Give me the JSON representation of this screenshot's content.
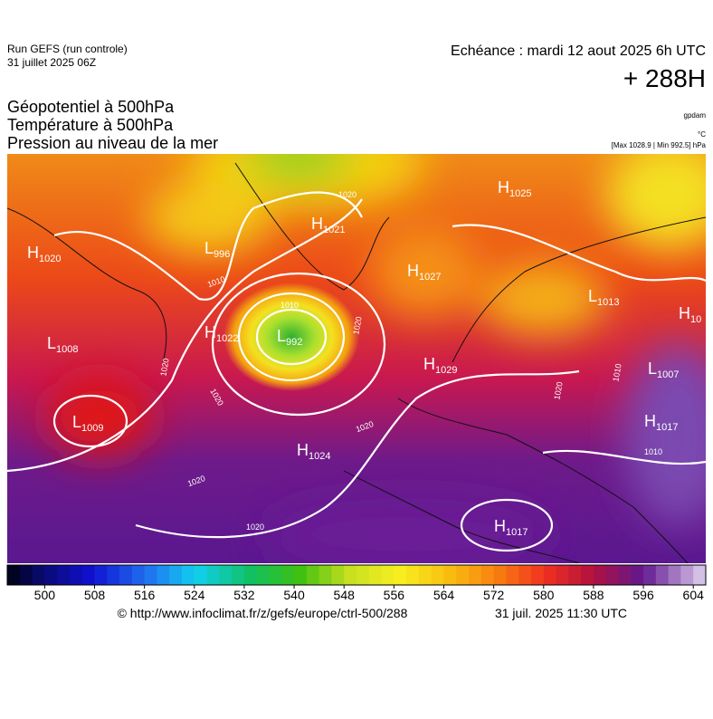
{
  "header": {
    "run": "Run GEFS (run controle)",
    "run_date": "31 juillet 2025 06Z",
    "valid": "Echéance : mardi 12 aout 2025 6h UTC",
    "lead": "+ 288H",
    "titles": [
      "Géopotentiel à 500hPa",
      "Température à 500hPa",
      "Pression au niveau de la mer"
    ],
    "units": [
      "gpdam",
      "°C",
      "[Max 1028.9 | Min 992.5] hPa"
    ]
  },
  "map": {
    "centers": [
      {
        "kind": "H",
        "value": "1020"
      },
      {
        "kind": "L",
        "value": "996"
      },
      {
        "kind": "H",
        "value": "1021"
      },
      {
        "kind": "H",
        "value": "1025"
      },
      {
        "kind": "H",
        "value": "1027"
      },
      {
        "kind": "L",
        "value": "1013"
      },
      {
        "kind": "H",
        "value": "10"
      },
      {
        "kind": "L",
        "value": "1008"
      },
      {
        "kind": "H",
        "value": "1022"
      },
      {
        "kind": "L",
        "value": "992"
      },
      {
        "kind": "H",
        "value": "1029"
      },
      {
        "kind": "L",
        "value": "1007"
      },
      {
        "kind": "L",
        "value": "1009"
      },
      {
        "kind": "H",
        "value": "1017"
      },
      {
        "kind": "H",
        "value": "1024"
      },
      {
        "kind": "H",
        "value": "1017"
      }
    ],
    "isobar_labels": [
      "1020",
      "1020",
      "1020",
      "1020",
      "1010",
      "1010",
      "1020",
      "1010",
      "1020",
      "1020",
      "1010",
      "1020"
    ]
  },
  "colorbar": {
    "lim": [
      494,
      606
    ],
    "ticks": [
      500,
      508,
      516,
      524,
      532,
      540,
      548,
      556,
      564,
      572,
      580,
      588,
      596,
      604
    ]
  },
  "footer": {
    "source": "© http://www.infoclimat.fr/z/gefs/europe/ctrl-500/288",
    "generated": "31 juil. 2025 11:30 UTC"
  }
}
